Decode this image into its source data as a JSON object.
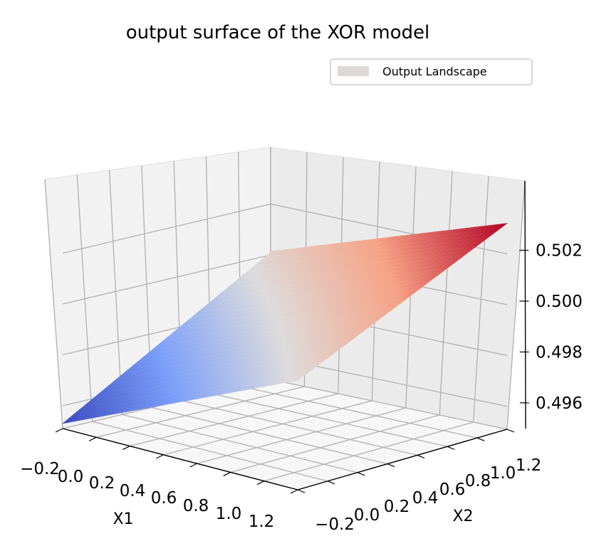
{
  "chart_data": {
    "type": "surface3d",
    "title": "output surface of the XOR model",
    "xlabel": "X1",
    "ylabel": "X2",
    "zlabel": "",
    "xlim": [
      -0.2,
      1.2
    ],
    "ylim": [
      -0.2,
      1.2
    ],
    "zlim": [
      0.4951,
      0.5035
    ],
    "x_ticks": [
      -0.2,
      0.0,
      0.2,
      0.4,
      0.6,
      0.8,
      1.0,
      1.2
    ],
    "y_ticks": [
      -0.2,
      0.0,
      0.2,
      0.4,
      0.6,
      0.8,
      1.0,
      1.2
    ],
    "z_ticks": [
      0.496,
      0.498,
      0.5,
      0.502
    ],
    "x_tick_labels": [
      "−0.2",
      "0.0",
      "0.2",
      "0.4",
      "0.6",
      "0.8",
      "1.0",
      "1.2"
    ],
    "y_tick_labels": [
      "−0.2",
      "0.0",
      "0.2",
      "0.4",
      "0.6",
      "0.8",
      "1.0",
      "1.2"
    ],
    "z_tick_labels": [
      "0.496",
      "0.498",
      "0.500",
      "0.502"
    ],
    "surface": {
      "name": "Output Landscape",
      "colormap": "coolwarm",
      "z_at_corners": [
        {
          "x": -0.2,
          "y": -0.2,
          "z": 0.4953
        },
        {
          "x": 1.2,
          "y": -0.2,
          "z": 0.4994
        },
        {
          "x": -0.2,
          "y": 1.2,
          "z": 0.4997
        },
        {
          "x": 1.2,
          "y": 1.2,
          "z": 0.5032
        }
      ]
    },
    "legend": {
      "placement": "top-right",
      "entries": [
        "Output Landscape"
      ],
      "swatch_color": "#dcd9d7"
    },
    "grid": true,
    "view": {
      "elev": 10,
      "azim": -45
    },
    "colors": {
      "cool": "#3b4cc0",
      "mid": "#dddcdc",
      "warm": "#b40426",
      "pane": "#f2f2f2",
      "grid": "#b0b0b0"
    }
  }
}
